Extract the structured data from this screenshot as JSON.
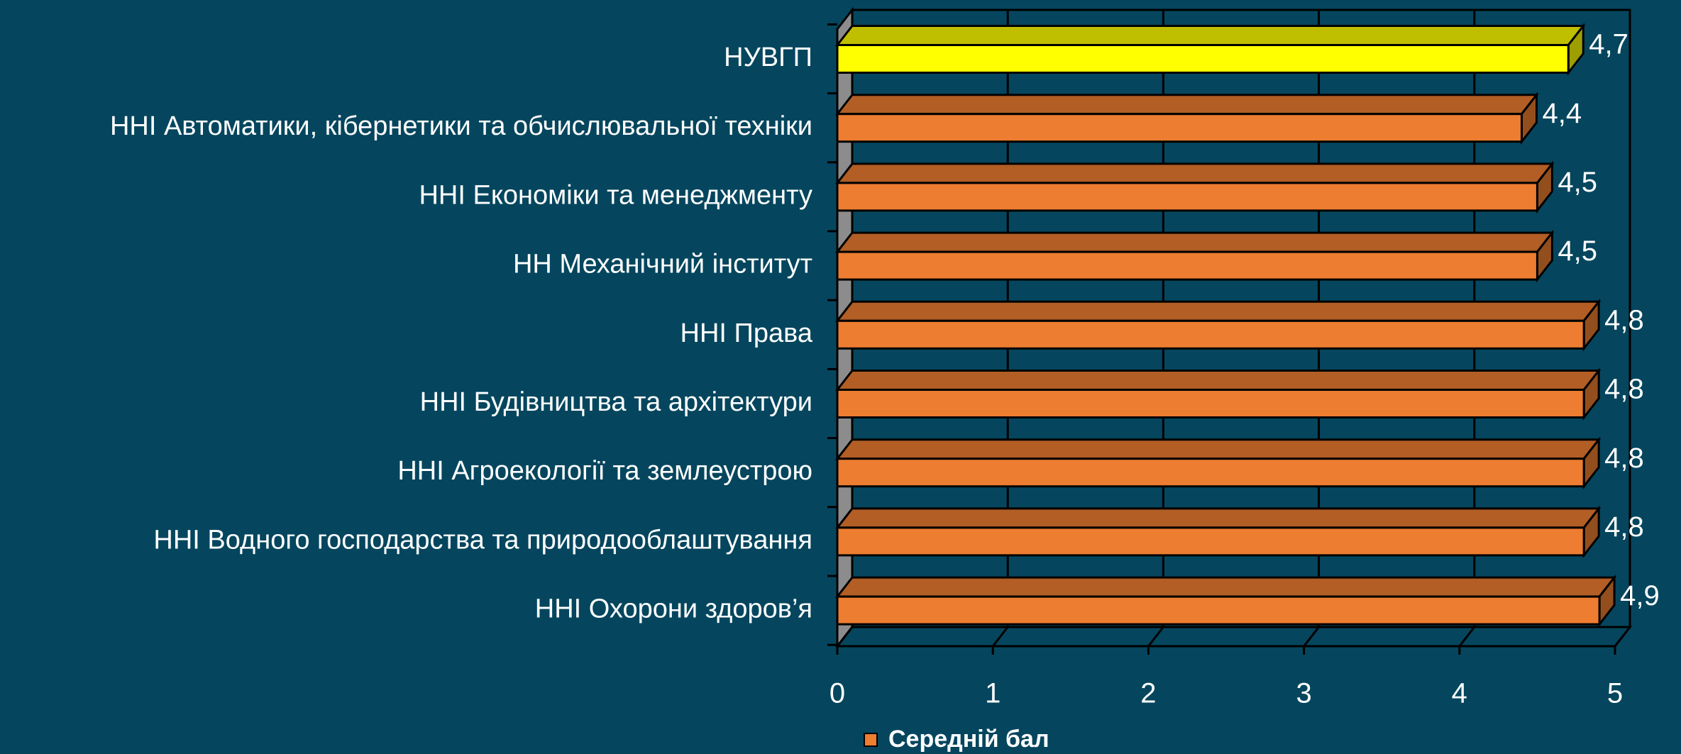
{
  "chart_data": {
    "type": "bar3d_horizontal",
    "categories": [
      "НУВГП",
      "ННІ Автоматики, кібернетики та обчислювальної техніки",
      "ННІ Економіки та менеджменту",
      "НН Механічний інститут",
      "ННІ Права",
      "ННІ Будівництва та архітектури",
      "ННІ Агроекології та землеустрою",
      "ННІ Водного господарства та природооблаштування",
      "ННІ Охорони здоров’я"
    ],
    "series": [
      {
        "name": "Середній бал",
        "color": "#ed7d31",
        "colors": [
          "#ffff00",
          "#ed7d31",
          "#ed7d31",
          "#ed7d31",
          "#ed7d31",
          "#ed7d31",
          "#ed7d31",
          "#ed7d31",
          "#ed7d31"
        ],
        "values": [
          4.7,
          4.4,
          4.5,
          4.5,
          4.8,
          4.8,
          4.8,
          4.8,
          4.9
        ],
        "value_labels": [
          "4,7",
          "4,4",
          "4,5",
          "4,5",
          "4,8",
          "4,8",
          "4,8",
          "4,8",
          "4,9"
        ]
      }
    ],
    "xlim": [
      0,
      5
    ],
    "xticks": [
      0,
      1,
      2,
      3,
      4,
      5
    ],
    "grid": true,
    "legend": "bottom"
  }
}
